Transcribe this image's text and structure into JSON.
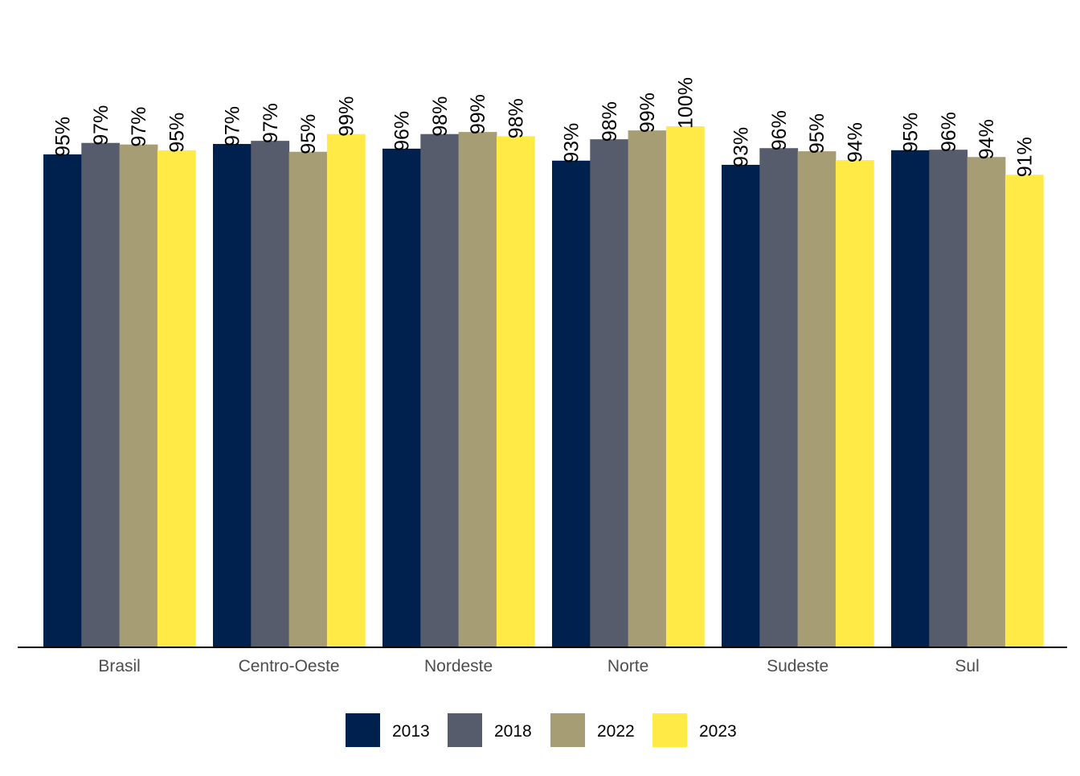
{
  "chart_data": {
    "type": "bar",
    "title": "",
    "xlabel": "",
    "ylabel": "",
    "ylim": [
      0,
      100
    ],
    "grid": false,
    "legend_position": "bottom",
    "categories": [
      "Brasil",
      "Centro-Oeste",
      "Nordeste",
      "Norte",
      "Sudeste",
      "Sul"
    ],
    "series": [
      {
        "name": "2013",
        "color": "#00204D",
        "values": [
          94.6,
          96.6,
          95.7,
          93.4,
          92.6,
          95.4
        ],
        "labels": [
          "95%",
          "97%",
          "96%",
          "93%",
          "93%",
          "95%"
        ]
      },
      {
        "name": "2018",
        "color": "#575C6D",
        "values": [
          96.8,
          97.2,
          98.5,
          97.5,
          95.8,
          95.5
        ],
        "labels": [
          "97%",
          "97%",
          "98%",
          "98%",
          "96%",
          "96%"
        ]
      },
      {
        "name": "2022",
        "color": "#A69D75",
        "values": [
          96.5,
          95.1,
          98.9,
          99.2,
          95.2,
          94.1
        ],
        "labels": [
          "97%",
          "95%",
          "99%",
          "99%",
          "95%",
          "94%"
        ]
      },
      {
        "name": "2023",
        "color": "#FFEA46",
        "values": [
          95.4,
          98.5,
          98.1,
          100.0,
          93.5,
          90.7
        ],
        "labels": [
          "95%",
          "99%",
          "98%",
          "100%",
          "94%",
          "91%"
        ]
      }
    ]
  }
}
